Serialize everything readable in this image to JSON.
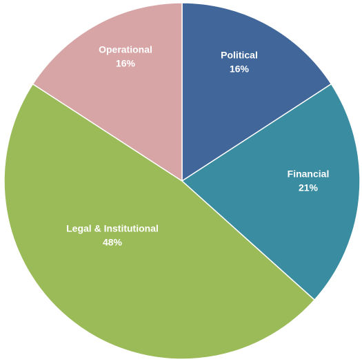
{
  "chart_data": {
    "type": "pie",
    "categories": [
      "Political",
      "Financial",
      "Legal & Institutional",
      "Operational"
    ],
    "values": [
      16,
      21,
      48,
      16
    ],
    "value_labels": [
      "16%",
      "21%",
      "48%",
      "16%"
    ],
    "colors": [
      "#41679a",
      "#3a8ca0",
      "#9bbb59",
      "#d7a5a5"
    ]
  }
}
